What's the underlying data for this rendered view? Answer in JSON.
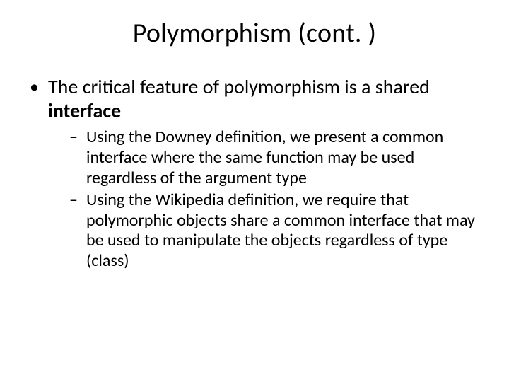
{
  "slide": {
    "title": "Polymorphism (cont. )",
    "bullets": [
      {
        "pre": "The critical feature of polymorphism is a shared ",
        "bold": "interface",
        "sub": [
          "Using the Downey definition, we present a common interface where the same function may be used regardless of the argument type",
          "Using the Wikipedia definition, we require that polymorphic objects share a common interface that may be used to manipulate the objects regardless of type (class)"
        ]
      }
    ]
  },
  "style": {
    "background": "#ffffff",
    "text_color": "#000000",
    "title_fontsize": 38,
    "lvl1_fontsize": 28,
    "lvl2_fontsize": 24,
    "font_family": "Calibri"
  }
}
